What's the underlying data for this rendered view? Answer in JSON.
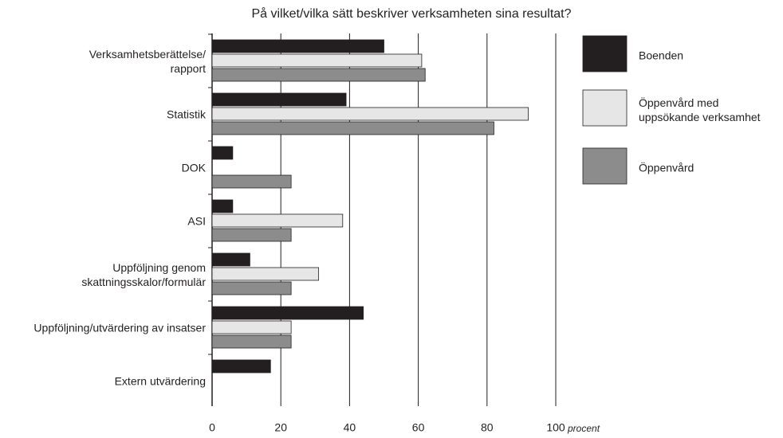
{
  "chart_data": {
    "type": "bar",
    "orientation": "horizontal",
    "title": "På vilket/vilka sätt beskriver verksamheten sina resultat?",
    "x_label": "procent",
    "categories": [
      "Verksamhetsberättelse/\nrapport",
      "Statistik",
      "DOK",
      "ASI",
      "Uppföljning genom\nskattningsskalor/formulär",
      "Uppföljning/utvärdering av insatser",
      "Extern utvärdering"
    ],
    "series": [
      {
        "name": "Boenden",
        "color": "#231f20",
        "values": [
          50,
          39,
          6,
          6,
          11,
          44,
          17
        ]
      },
      {
        "name": "Öppenvård med\nuppsökande verksamhet",
        "color": "#e6e6e6",
        "values": [
          61,
          92,
          null,
          38,
          31,
          23,
          null
        ]
      },
      {
        "name": "Öppenvård",
        "color": "#8c8c8c",
        "values": [
          62,
          82,
          23,
          23,
          23,
          23,
          null
        ]
      }
    ],
    "xlim": [
      0,
      100
    ],
    "xticks": [
      0,
      20,
      40,
      60,
      80,
      100
    ],
    "grid": true
  }
}
